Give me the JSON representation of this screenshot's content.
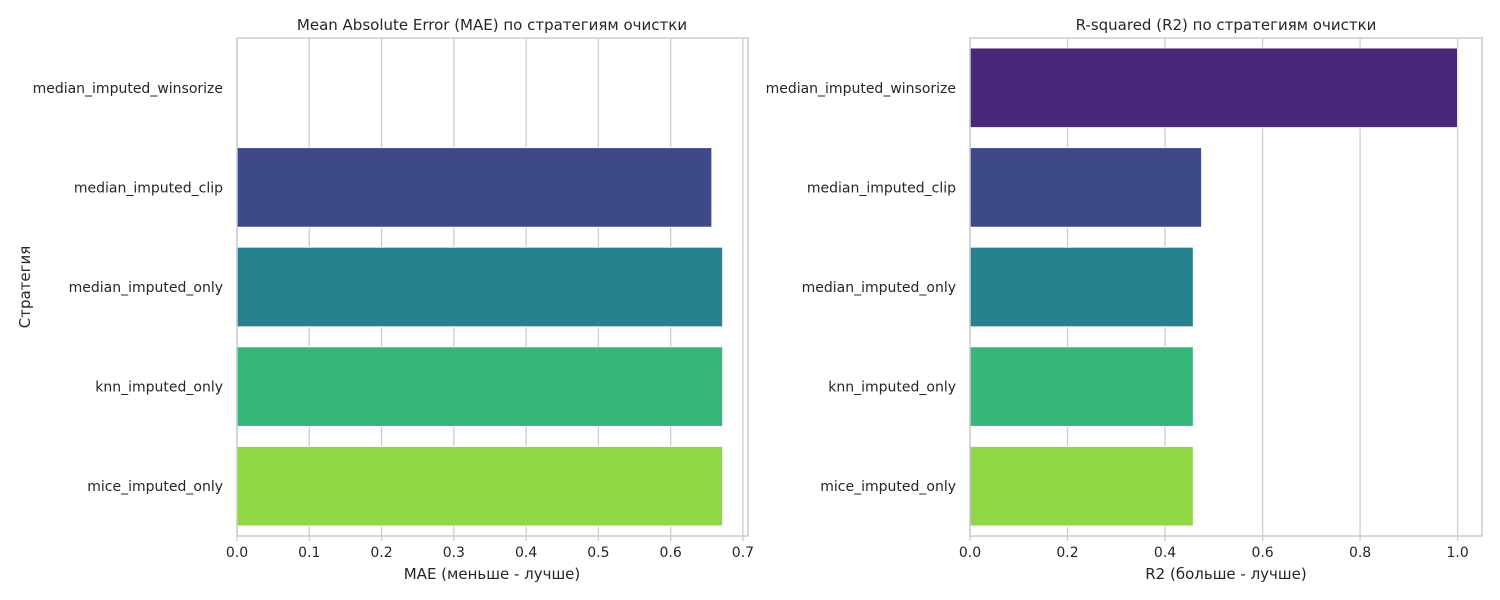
{
  "chart_data": [
    {
      "type": "bar",
      "orientation": "horizontal",
      "title": "Mean Absolute Error (MAE) по стратегиям очистки",
      "xlabel": "MAE (меньше - лучше)",
      "ylabel": "Стратегия",
      "categories": [
        "median_imputed_winsorize",
        "median_imputed_clip",
        "median_imputed_only",
        "knn_imputed_only",
        "mice_imputed_only"
      ],
      "values": [
        0.0,
        0.657,
        0.672,
        0.672,
        0.672
      ],
      "xlim": [
        0,
        0.707
      ],
      "xticks": [
        0.0,
        0.1,
        0.2,
        0.3,
        0.4,
        0.5,
        0.6,
        0.7
      ],
      "tick_labels": [
        "0.0",
        "0.1",
        "0.2",
        "0.3",
        "0.4",
        "0.5",
        "0.6",
        "0.7"
      ],
      "colors": [
        "#482878",
        "#3e4989",
        "#26828e",
        "#35b779",
        "#8fd744"
      ],
      "grid": true
    },
    {
      "type": "bar",
      "orientation": "horizontal",
      "title": "R-squared (R2) по стратегиям очистки",
      "xlabel": "R2 (больше - лучше)",
      "ylabel": "",
      "categories": [
        "median_imputed_winsorize",
        "median_imputed_clip",
        "median_imputed_only",
        "knn_imputed_only",
        "mice_imputed_only"
      ],
      "values": [
        1.0,
        0.475,
        0.458,
        0.458,
        0.458
      ],
      "xlim": [
        0,
        1.05
      ],
      "xticks": [
        0.0,
        0.2,
        0.4,
        0.6,
        0.8,
        1.0
      ],
      "tick_labels": [
        "0.0",
        "0.2",
        "0.4",
        "0.6",
        "0.8",
        "1.0"
      ],
      "colors": [
        "#482878",
        "#3e4989",
        "#26828e",
        "#35b779",
        "#8fd744"
      ],
      "grid": true
    }
  ]
}
